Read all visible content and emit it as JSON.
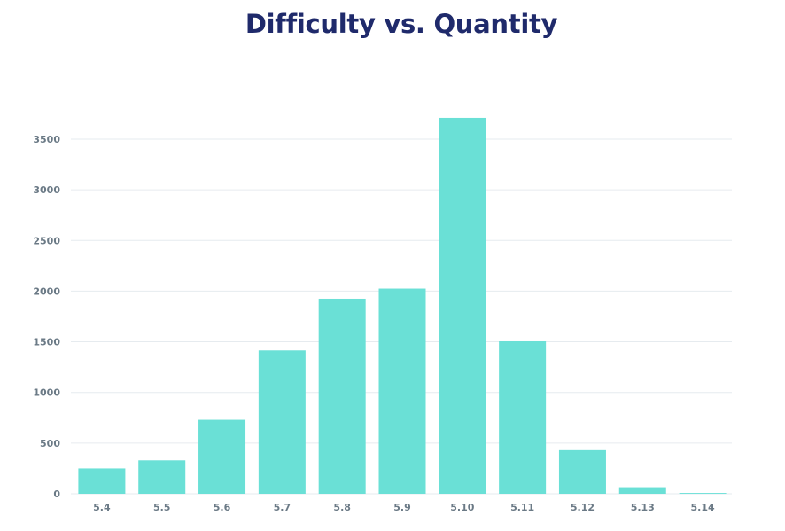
{
  "chart_data": {
    "type": "bar",
    "title": "Difficulty vs. Quantity",
    "xlabel": "",
    "ylabel": "",
    "categories": [
      "5.4",
      "5.5",
      "5.6",
      "5.7",
      "5.8",
      "5.9",
      "5.10",
      "5.11",
      "5.12",
      "5.13",
      "5.14"
    ],
    "values": [
      250,
      330,
      730,
      1415,
      1925,
      2025,
      3710,
      1505,
      430,
      65,
      8
    ],
    "ylim": [
      0,
      3700
    ],
    "yticks": [
      0,
      500,
      1000,
      1500,
      2000,
      2500,
      3000,
      3500
    ],
    "grid": true,
    "legend": "none",
    "colors": {
      "bar": "#6ae0d6",
      "grid": "#e6ebef",
      "title": "#1f2a6b",
      "tick": "#6b7a86"
    }
  }
}
